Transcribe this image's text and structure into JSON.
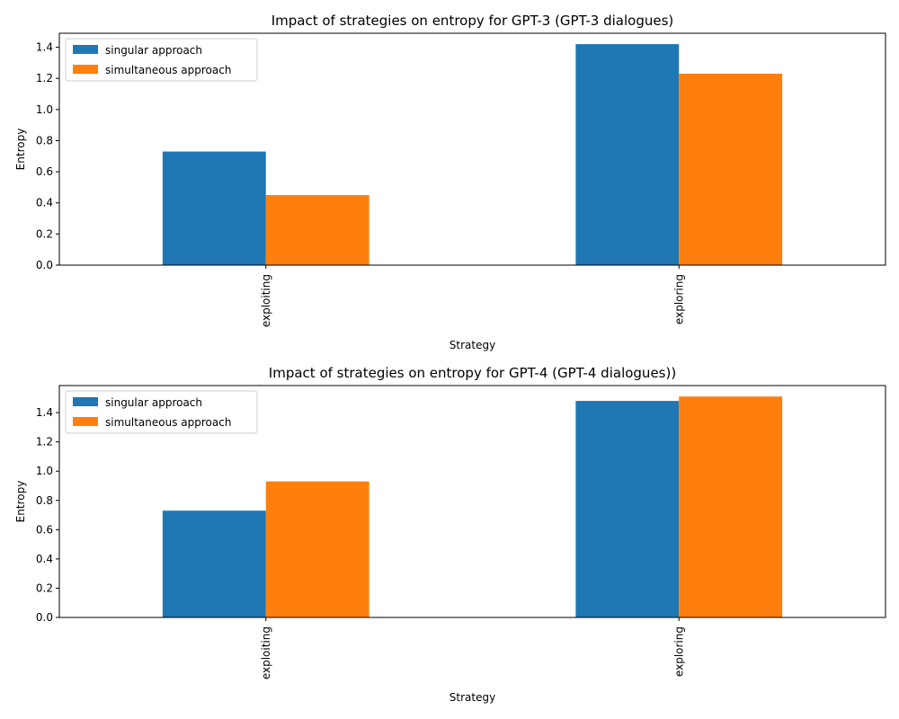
{
  "chart_data": [
    {
      "type": "bar",
      "title": "Impact of strategies on entropy for GPT-3 (GPT-3 dialogues)",
      "xlabel": "Strategy",
      "ylabel": "Entropy",
      "categories": [
        "exploiting",
        "exploring"
      ],
      "series": [
        {
          "name": "singular approach",
          "values": [
            0.73,
            1.42
          ],
          "color": "#1f77b4"
        },
        {
          "name": "simultaneous approach",
          "values": [
            0.45,
            1.23
          ],
          "color": "#ff7f0e"
        }
      ],
      "ylim": [
        0,
        1.49
      ],
      "yticks": [
        "0.0",
        "0.2",
        "0.4",
        "0.6",
        "0.8",
        "1.0",
        "1.2",
        "1.4"
      ],
      "grid": false,
      "legend": "top-left"
    },
    {
      "type": "bar",
      "title": "Impact of strategies on entropy for GPT-4 (GPT-4 dialogues))",
      "xlabel": "Strategy",
      "ylabel": "Entropy",
      "categories": [
        "exploiting",
        "exploring"
      ],
      "series": [
        {
          "name": "singular approach",
          "values": [
            0.73,
            1.48
          ],
          "color": "#1f77b4"
        },
        {
          "name": "simultaneous approach",
          "values": [
            0.93,
            1.51
          ],
          "color": "#ff7f0e"
        }
      ],
      "ylim": [
        0,
        1.585
      ],
      "yticks": [
        "0.0",
        "0.2",
        "0.4",
        "0.6",
        "0.8",
        "1.0",
        "1.2",
        "1.4"
      ],
      "grid": false,
      "legend": "top-left"
    }
  ]
}
